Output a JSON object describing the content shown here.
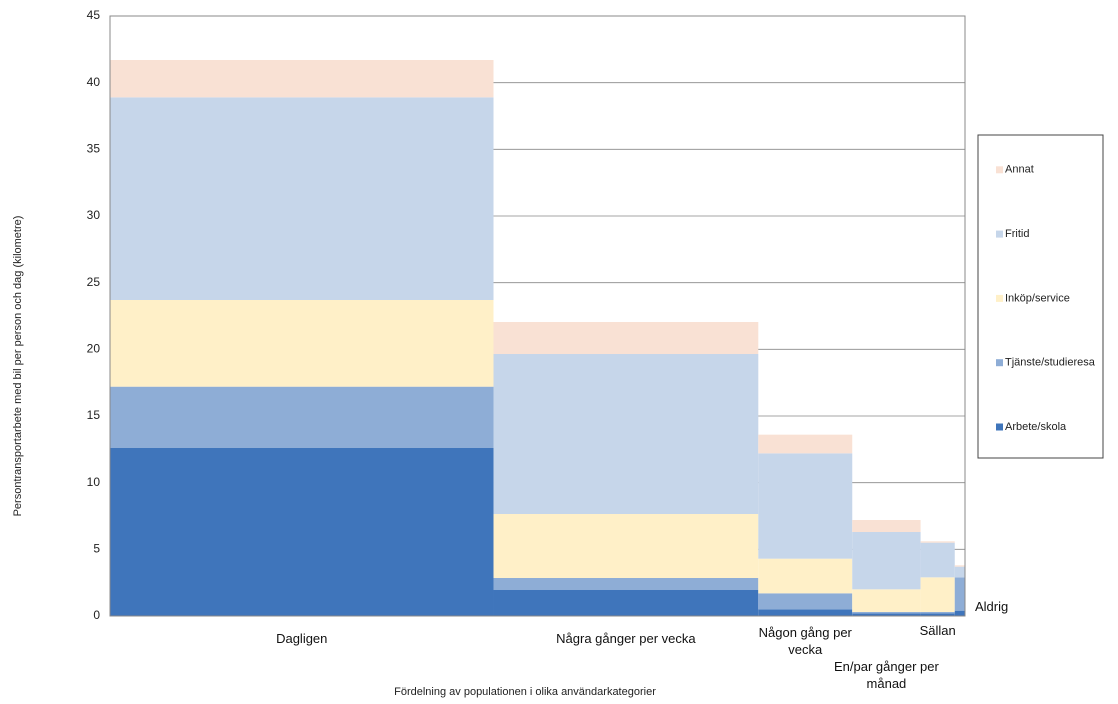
{
  "chart_data": {
    "type": "marimekko",
    "x_label": "Fördelning  av populationen  i olika användarkategorier",
    "y_label": "Persontransportarbete  med bil per person och dag (kilometre)",
    "categories": [
      "Dagligen",
      "Några gånger per vecka",
      "Någon gång per vecka",
      "En/par gånger per månad",
      "Sällan",
      "Aldrig"
    ],
    "widths": [
      44.9,
      31.0,
      11.0,
      8.0,
      4.0,
      1.2
    ],
    "series": [
      {
        "name": "Arbete/skola",
        "color": "#3f75bb",
        "values": [
          12.6,
          1.95,
          0.5,
          0.2,
          0.2,
          0.4
        ]
      },
      {
        "name": "Tjänste/studieresa",
        "color": "#8eadd6",
        "values": [
          4.6,
          0.9,
          1.2,
          0.1,
          0.1,
          2.5
        ]
      },
      {
        "name": "Inköp/service",
        "color": "#fff0c8",
        "values": [
          6.5,
          4.8,
          2.6,
          1.7,
          2.6,
          0.0
        ]
      },
      {
        "name": "Fritid",
        "color": "#c6d6ea",
        "values": [
          15.2,
          12.0,
          7.9,
          4.3,
          2.6,
          0.8
        ]
      },
      {
        "name": "Annat",
        "color": "#f9e1d4",
        "values": [
          2.8,
          2.4,
          1.4,
          0.9,
          0.1,
          0.1
        ]
      }
    ],
    "ylim": [
      0,
      45
    ],
    "yticks": [
      0,
      5,
      10,
      15,
      20,
      25,
      30,
      35,
      40,
      45
    ],
    "grid": true
  }
}
